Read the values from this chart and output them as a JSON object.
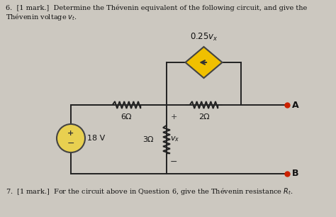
{
  "bg_color": "#ccc8c0",
  "title_line1": "6.  [1 mark.]  Determine the Thévenin equivalent of the following circuit, and give the",
  "title_line2": "Thévenin voltage $v_t$.",
  "footer_text": "7.  [1 mark.]  For the circuit above in Question 6, give the Thévenin resistance $R_t$.",
  "resistor_6": "6Ω",
  "resistor_2": "2Ω",
  "resistor_3": "3Ω",
  "voltage_source": "18 V",
  "dep_source_label": "0.25$v_x$",
  "vx_label": "$v_x$",
  "node_A": "A",
  "node_B": "B",
  "dep_source_color": "#f0c000",
  "dep_source_border": "#444444",
  "wire_color": "#222222",
  "node_color": "#cc2200",
  "vs_circle_color": "#e8d050",
  "vs_border_color": "#444444"
}
